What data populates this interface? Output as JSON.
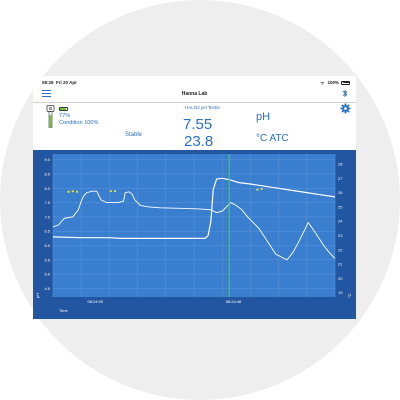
{
  "status_bar": {
    "time": "08:26",
    "date": "Fri 20 Apr",
    "battery": "100%"
  },
  "navbar": {
    "title": "Hanna Lab"
  },
  "probe": {
    "battery_percent": "77%",
    "condition": "Condition 100%",
    "name": "HALO2 pH Tester",
    "stability": "Stable",
    "ph_value": "7.55",
    "temp_value": "23.8",
    "ph_unit": "pH",
    "temp_unit": "°C ATC",
    "battery_level": 0.77
  },
  "colors": {
    "accent": "#2a6fc4",
    "chart_bg": "#3a7ed0",
    "chart_frame": "#2356a0",
    "ph_line": "#ffffff",
    "marker": "#e8e83c",
    "cursor_line": "#3ad33a"
  },
  "chart_data": {
    "type": "line",
    "y_left": {
      "label": "pH",
      "ticks": [
        "9.0",
        "8.5",
        "8.0",
        "7.5",
        "7.0",
        "6.5",
        "6.0",
        "5.5",
        "5.0",
        "4.5"
      ],
      "range": [
        4.2,
        9.2
      ]
    },
    "y_right": {
      "label": "°C",
      "ticks": [
        "28",
        "27",
        "26",
        "25",
        "24",
        "23",
        "22",
        "21",
        "20",
        "19"
      ],
      "range": [
        18.7,
        28.7
      ]
    },
    "x_label": "Time",
    "x_ticks": [
      "08:24:00",
      "08:24:48"
    ],
    "x_range": [
      0,
      100
    ],
    "cursor_x": 62.5,
    "series": [
      {
        "axis": "left",
        "points": [
          [
            0,
            6.65
          ],
          [
            2,
            6.72
          ],
          [
            4,
            6.95
          ],
          [
            5.5,
            6.98
          ],
          [
            7,
            7.0
          ],
          [
            9,
            7.25
          ],
          [
            10,
            7.55
          ],
          [
            11,
            7.75
          ],
          [
            12,
            7.85
          ],
          [
            14,
            7.9
          ],
          [
            15.5,
            7.9
          ],
          [
            17,
            7.6
          ],
          [
            19,
            7.5
          ],
          [
            21,
            7.5
          ],
          [
            23,
            7.5
          ],
          [
            25,
            7.55
          ],
          [
            25.6,
            7.85
          ],
          [
            27,
            7.88
          ],
          [
            28,
            7.8
          ],
          [
            29,
            7.6
          ],
          [
            31,
            7.4
          ],
          [
            34,
            7.35
          ],
          [
            38,
            7.32
          ],
          [
            45,
            7.3
          ],
          [
            52,
            7.28
          ],
          [
            56,
            7.25
          ],
          [
            57,
            7.2
          ],
          [
            58,
            7.15
          ],
          [
            60,
            7.2
          ],
          [
            61,
            7.3
          ],
          [
            63,
            7.5
          ],
          [
            65,
            7.4
          ],
          [
            67,
            7.25
          ],
          [
            69,
            7.0
          ],
          [
            71,
            6.8
          ],
          [
            73,
            6.6
          ],
          [
            75,
            6.3
          ],
          [
            77,
            6.0
          ],
          [
            79,
            5.7
          ],
          [
            81,
            5.6
          ],
          [
            83,
            5.5
          ],
          [
            85,
            5.75
          ],
          [
            87,
            6.1
          ],
          [
            89,
            6.5
          ],
          [
            90.5,
            6.8
          ],
          [
            92,
            6.6
          ],
          [
            94,
            6.3
          ],
          [
            96,
            6.0
          ],
          [
            98,
            5.75
          ],
          [
            100,
            5.55
          ]
        ]
      },
      {
        "axis": "right",
        "points": [
          [
            0,
            22.9
          ],
          [
            10,
            22.85
          ],
          [
            20,
            22.85
          ],
          [
            24,
            22.8
          ],
          [
            28,
            22.8
          ],
          [
            32,
            22.8
          ],
          [
            40,
            22.8
          ],
          [
            50,
            22.8
          ],
          [
            54,
            22.8
          ],
          [
            55,
            23.0
          ],
          [
            56,
            24.0
          ],
          [
            56.8,
            26.2
          ],
          [
            58,
            26.95
          ],
          [
            60,
            27.0
          ],
          [
            62.5,
            26.9
          ],
          [
            66,
            26.7
          ],
          [
            70,
            26.6
          ],
          [
            75,
            26.45
          ],
          [
            80,
            26.3
          ],
          [
            85,
            26.15
          ],
          [
            90,
            26.0
          ],
          [
            95,
            25.85
          ],
          [
            100,
            25.7
          ]
        ]
      }
    ],
    "markers": [
      {
        "x": 5.5,
        "y": 7.88
      },
      {
        "x": 7,
        "y": 7.9
      },
      {
        "x": 8.5,
        "y": 7.88
      },
      {
        "x": 20.5,
        "y": 7.9
      },
      {
        "x": 22,
        "y": 7.9
      },
      {
        "x": 72.5,
        "y": 7.95
      },
      {
        "x": 74,
        "y": 7.98
      }
    ]
  }
}
